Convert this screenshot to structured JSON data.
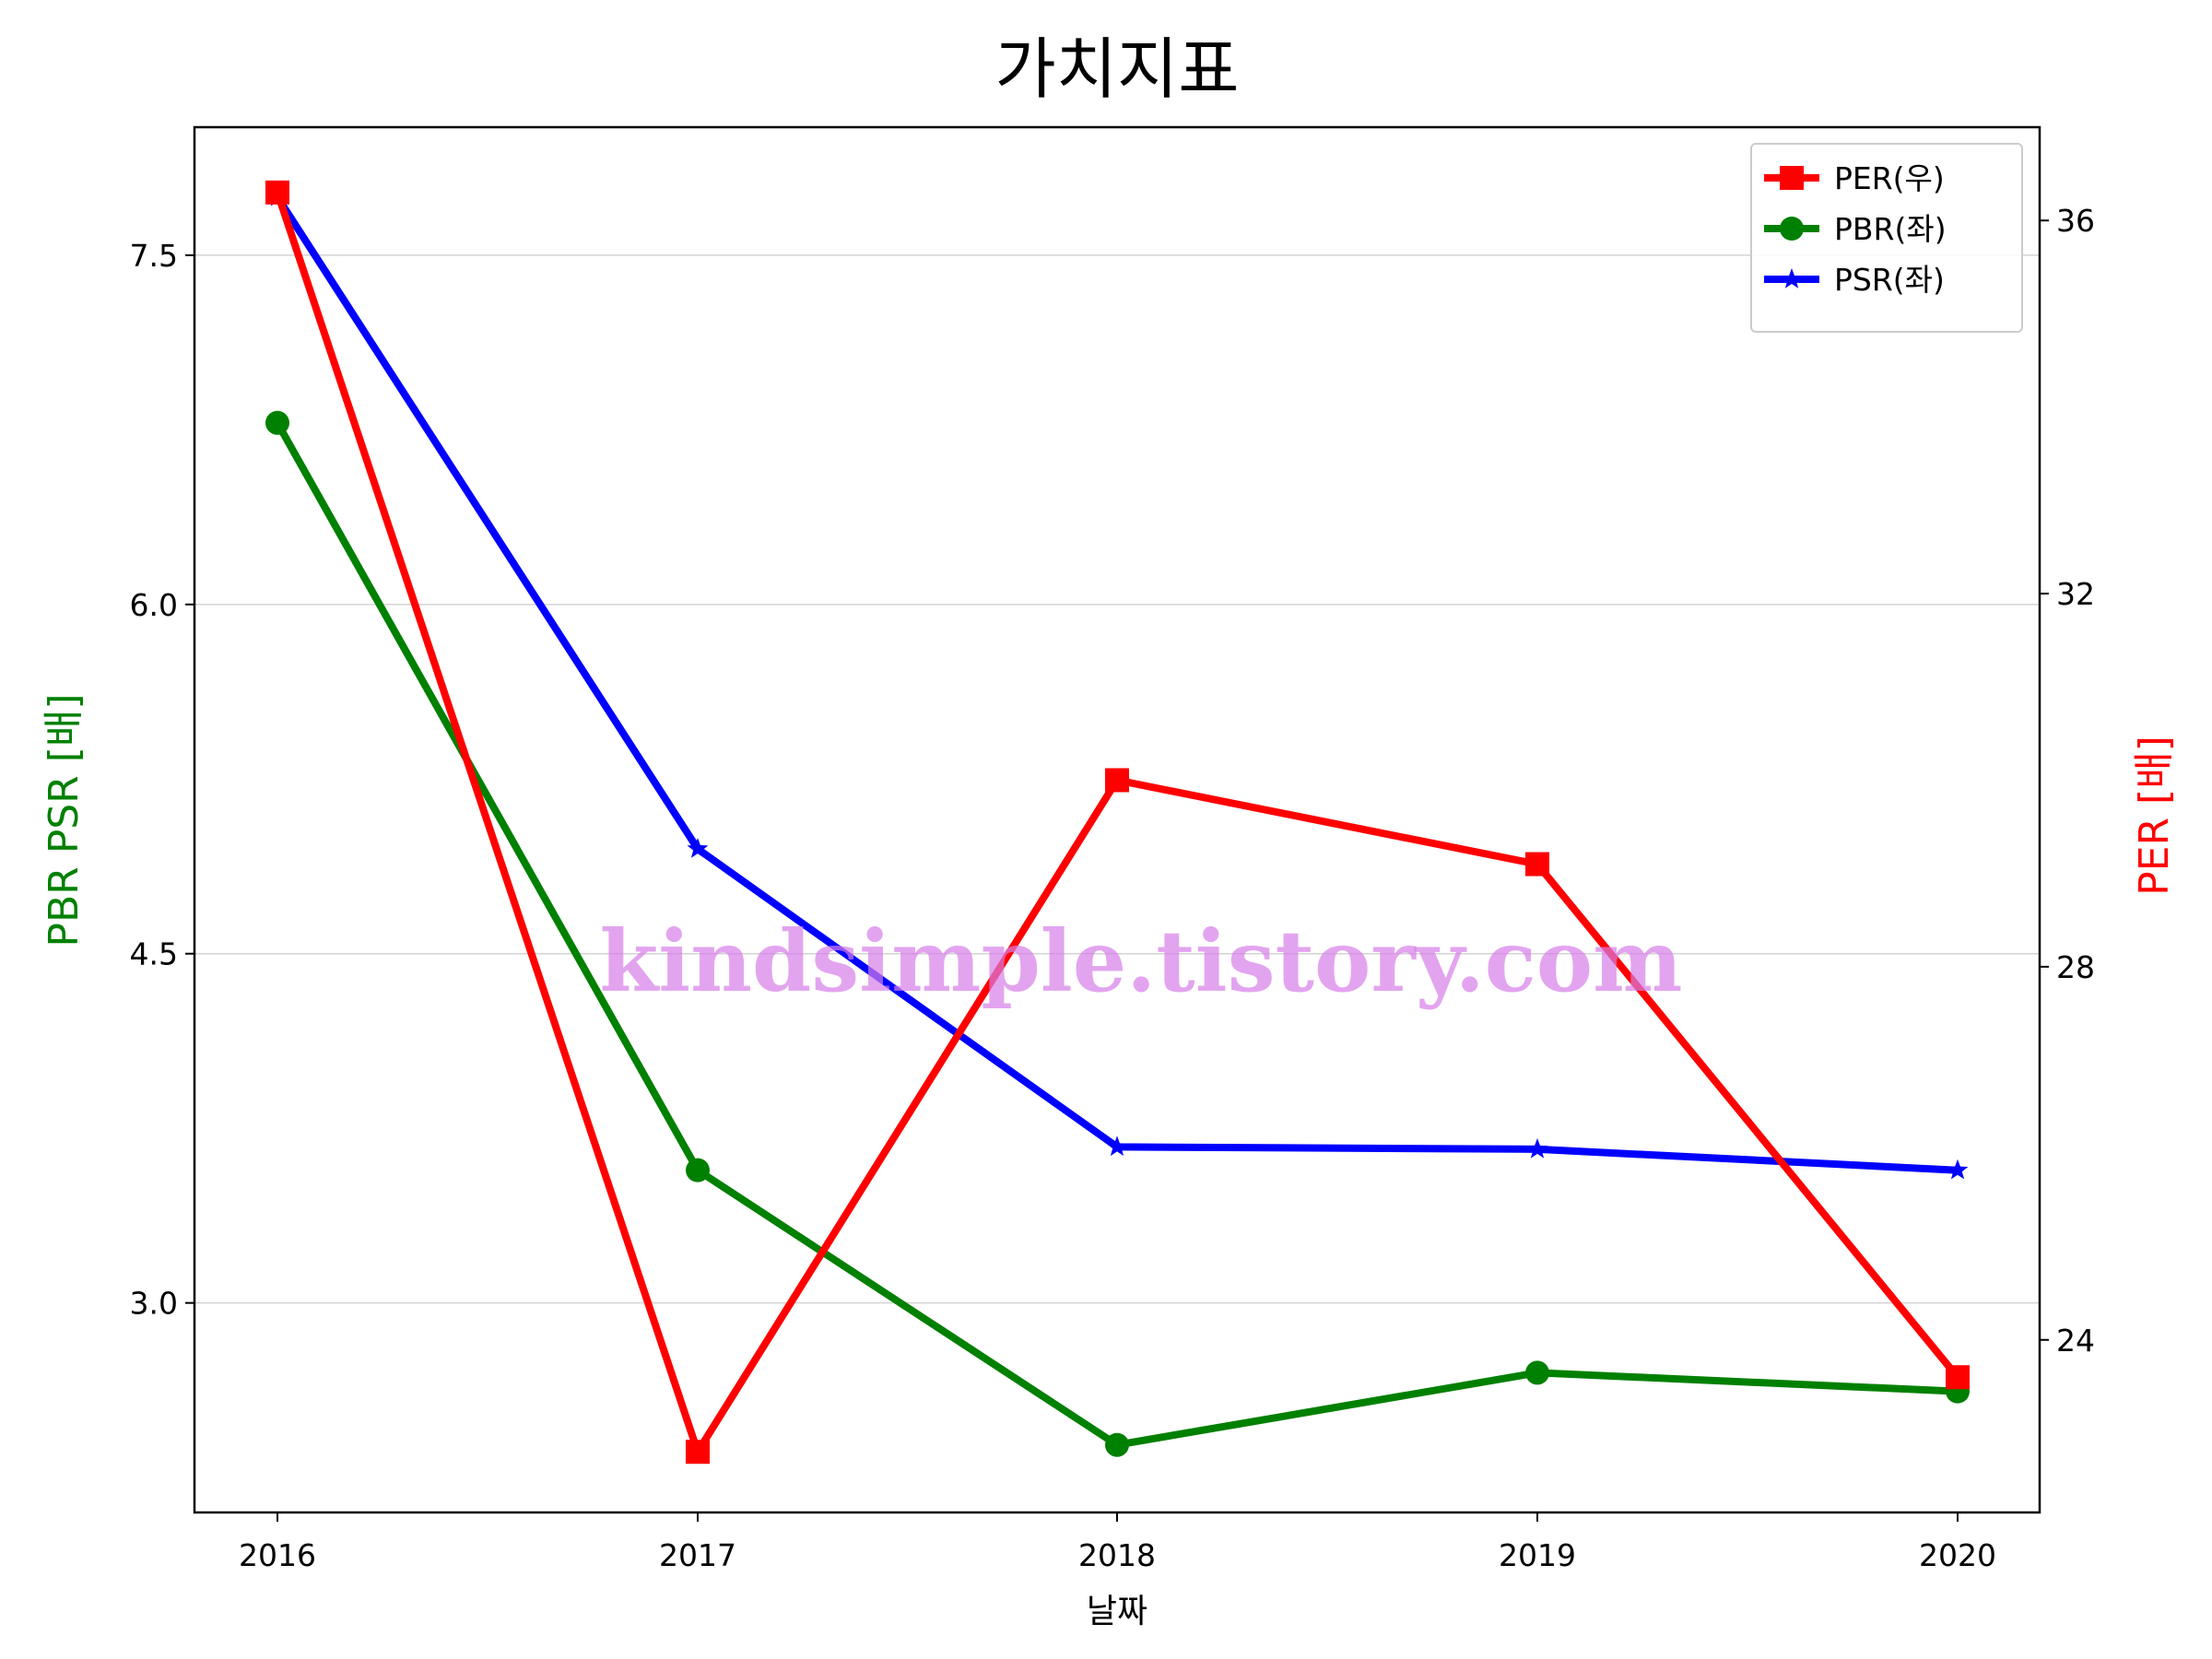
{
  "chart_data": {
    "type": "line",
    "title": "가치지표",
    "xlabel": "날짜",
    "ylabel_left": "PBR PSR [배]",
    "ylabel_right": "PER [배]",
    "categories": [
      "2016",
      "2017",
      "2018",
      "2019",
      "2020"
    ],
    "left_axis": {
      "ylim": [
        2.1,
        8.05
      ],
      "ticks": [
        3.0,
        4.5,
        6.0,
        7.5
      ],
      "tick_labels": [
        "3.0",
        "4.5",
        "6.0",
        "7.5"
      ],
      "grid": true
    },
    "right_axis": {
      "ylim": [
        22.15,
        37.0
      ],
      "ticks": [
        24,
        28,
        32,
        36
      ],
      "tick_labels": [
        "24",
        "28",
        "32",
        "36"
      ]
    },
    "series": [
      {
        "name": "PER(우)",
        "axis": "right",
        "color": "#ff0000",
        "marker": "square",
        "values": [
          36.3,
          22.8,
          30.0,
          29.1,
          23.6
        ]
      },
      {
        "name": "PBR(좌)",
        "axis": "left",
        "color": "#008000",
        "marker": "circle",
        "values": [
          6.78,
          3.57,
          2.39,
          2.7,
          2.62
        ]
      },
      {
        "name": "PSR(좌)",
        "axis": "left",
        "color": "#0000ff",
        "marker": "star",
        "values": [
          7.75,
          4.95,
          3.67,
          3.66,
          3.57
        ]
      }
    ],
    "legend_position": "top-right",
    "watermark": "kindsimple.tistory.com"
  }
}
